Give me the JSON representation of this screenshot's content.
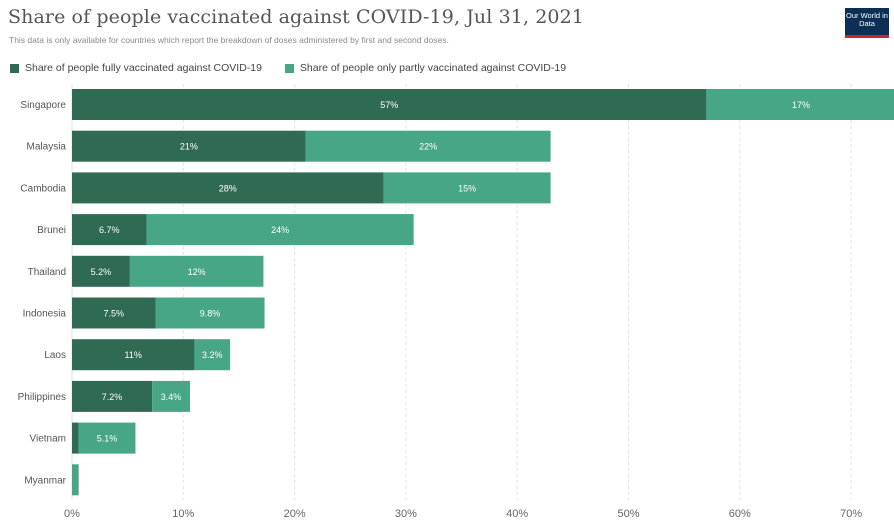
{
  "header": {
    "title": "Share of people vaccinated against COVID-19, Jul 31, 2021",
    "subtitle": "This data is only available for countries which report the breakdown of doses administered by first and second doses.",
    "logo_text": "Our World in Data"
  },
  "colors": {
    "full": "#2f6b52",
    "partial": "#47a686",
    "grid": "#e2e2e2",
    "label": "#555555",
    "bar_text": "#ffffff"
  },
  "chart_data": {
    "type": "bar",
    "orientation": "horizontal",
    "stacked": true,
    "categories": [
      "Singapore",
      "Malaysia",
      "Cambodia",
      "Brunei",
      "Thailand",
      "Indonesia",
      "Laos",
      "Philippines",
      "Vietnam",
      "Myanmar"
    ],
    "series": [
      {
        "name": "Share of people fully vaccinated against COVID-19",
        "values": [
          57,
          21,
          28,
          6.7,
          5.2,
          7.5,
          11,
          7.2,
          0.6,
          0
        ],
        "labels": [
          "57%",
          "21%",
          "28%",
          "6.7%",
          "5.2%",
          "7.5%",
          "11%",
          "7.2%",
          "",
          ""
        ]
      },
      {
        "name": "Share of people only partly vaccinated against COVID-19",
        "values": [
          17,
          22,
          15,
          24,
          12,
          9.8,
          3.2,
          3.4,
          5.1,
          0.6
        ],
        "labels": [
          "17%",
          "22%",
          "15%",
          "24%",
          "12%",
          "9.8%",
          "3.2%",
          "3.4%",
          "5.1%",
          ""
        ]
      }
    ],
    "x_ticks": [
      "0%",
      "10%",
      "20%",
      "30%",
      "40%",
      "50%",
      "60%",
      "70%"
    ],
    "xlim": [
      0,
      74
    ],
    "grid": true,
    "legend": "top-left"
  }
}
